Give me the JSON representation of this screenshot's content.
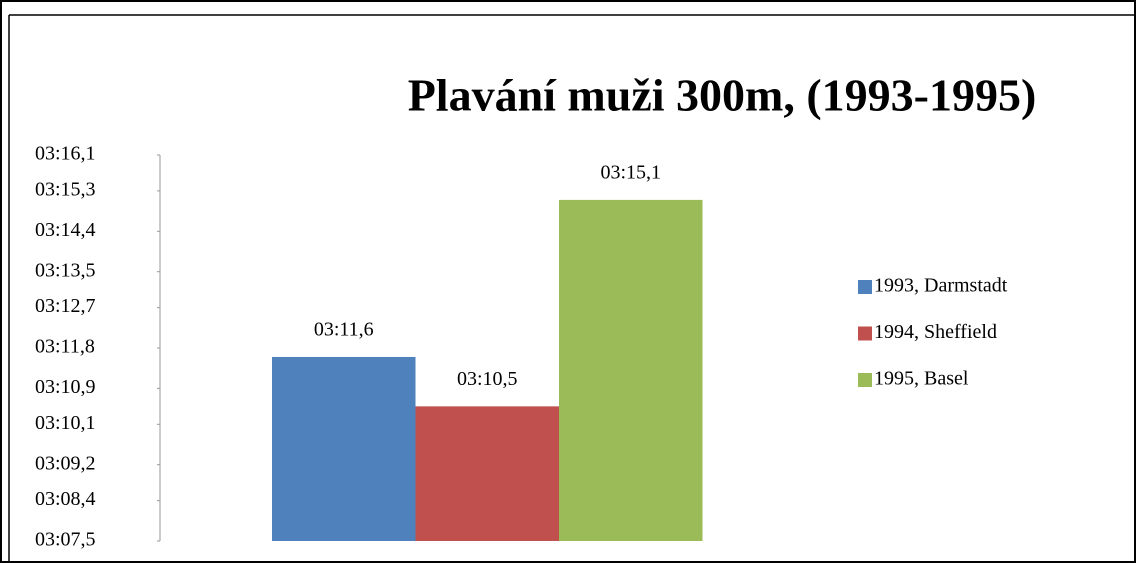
{
  "chart_data": {
    "type": "bar",
    "title": "Plavání muži 300m, (1993-1995)",
    "categories": [
      null
    ],
    "series": [
      {
        "name": "1993, Darmstadt",
        "color": "#4f81bd",
        "values": [
          191.6
        ],
        "value_labels": [
          "03:11,6"
        ]
      },
      {
        "name": "1994, Sheffield",
        "color": "#c0504d",
        "values": [
          190.5
        ],
        "value_labels": [
          "03:10,5"
        ]
      },
      {
        "name": "1995, Basel",
        "color": "#9bbb59",
        "values": [
          195.1
        ],
        "value_labels": [
          "03:15,1"
        ]
      }
    ],
    "ylim": [
      187.5,
      196.1
    ],
    "yticks": [
      {
        "value": 187.5,
        "label": "03:07,5"
      },
      {
        "value": 188.4,
        "label": "03:08,4"
      },
      {
        "value": 189.2,
        "label": "03:09,2"
      },
      {
        "value": 190.1,
        "label": "03:10,1"
      },
      {
        "value": 190.9,
        "label": "03:10,9"
      },
      {
        "value": 191.8,
        "label": "03:11,8"
      },
      {
        "value": 192.7,
        "label": "03:12,7"
      },
      {
        "value": 193.5,
        "label": "03:13,5"
      },
      {
        "value": 194.4,
        "label": "03:14,4"
      },
      {
        "value": 195.3,
        "label": "03:15,3"
      },
      {
        "value": 196.1,
        "label": "03:16,1"
      }
    ],
    "grid": false,
    "legend": "right"
  }
}
